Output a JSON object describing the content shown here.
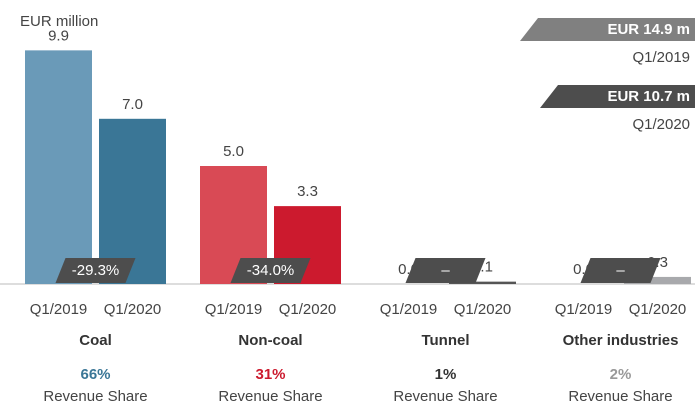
{
  "chart_data": {
    "type": "bar",
    "unit_label": "EUR million",
    "categories": [
      "Coal",
      "Non-coal",
      "Tunnel",
      "Other industries"
    ],
    "series": [
      {
        "name": "Q1/2019",
        "total_label": "EUR 14.9 m",
        "total_color": "#808080",
        "colors": [
          "#6a9ab8",
          "#d94a55",
          "#8a8a8a",
          "#c8c9cb"
        ],
        "values": [
          9.9,
          5.0,
          0.0,
          0.0
        ],
        "value_labels": [
          "9.9",
          "5.0",
          "0.0",
          "0.0"
        ]
      },
      {
        "name": "Q1/2020",
        "total_label": "EUR 10.7 m",
        "total_color": "#4d4d4d",
        "colors": [
          "#3a7696",
          "#cc1a2e",
          "#555555",
          "#a8a9ac"
        ],
        "values": [
          7.0,
          3.3,
          0.1,
          0.3
        ],
        "value_labels": [
          "7.0",
          "3.3",
          "0.1",
          "0.3"
        ]
      }
    ],
    "changes": [
      "-29.3%",
      "-34.0%",
      "–",
      "–"
    ],
    "revenue_share": [
      "66%",
      "31%",
      "1%",
      "2%"
    ],
    "revenue_share_colors": [
      "#3a7696",
      "#cc1a2e",
      "#333333",
      "#999999"
    ],
    "revenue_share_label": "Revenue Share"
  }
}
